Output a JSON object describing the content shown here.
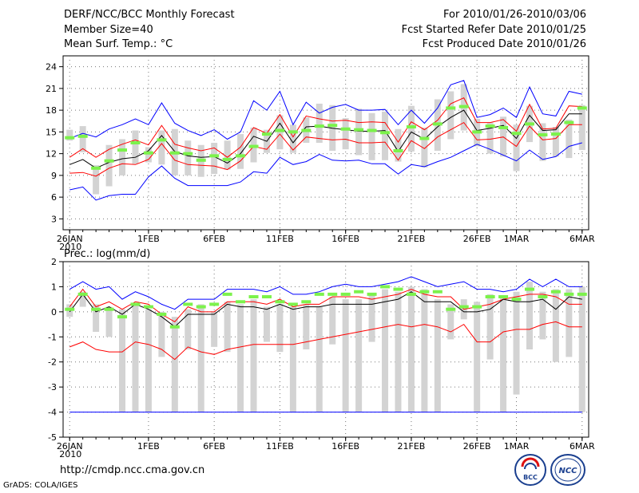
{
  "header": {
    "title": "DERF/NCC/BCC Monthly Forecast",
    "member_size": "Member Size=40",
    "variable1": "Mean Surf. Temp.: °C",
    "fcst_period": "For 2010/01/26-2010/03/06",
    "fcst_started": "Fcst Started Refer Date 2010/01/25",
    "fcst_produced": "Fcst Produced Date 2010/01/26"
  },
  "footer": {
    "url": "http://cmdp.ncc.cma.gov.cn",
    "credit": "GrADS: COLA/IGES",
    "logo_left": "BCC",
    "logo_right": "NCC"
  },
  "colors": {
    "mean": "#000000",
    "envelope": "#0000ff",
    "spread": "#ff0000",
    "bar": "#d3d3d3",
    "marker": "#7cf24b"
  },
  "chart_data": [
    {
      "type": "line",
      "title": "Mean Surf. Temp.: °C",
      "ylim": [
        1.5,
        25.5
      ],
      "yticks": [
        3,
        6,
        9,
        12,
        15,
        18,
        21,
        24
      ],
      "xticklabels": [
        {
          "day": 0,
          "label": "26JAN",
          "sub": "2010"
        },
        {
          "day": 6,
          "label": "1FEB"
        },
        {
          "day": 11,
          "label": "6FEB"
        },
        {
          "day": 16,
          "label": "11FEB"
        },
        {
          "day": 21,
          "label": "16FEB"
        },
        {
          "day": 26,
          "label": "21FEB"
        },
        {
          "day": 31,
          "label": "26FEB"
        },
        {
          "day": 34,
          "label": "1MAR"
        },
        {
          "day": 39,
          "label": "6MAR"
        }
      ],
      "series": [
        {
          "name": "max",
          "color": "#0000ff",
          "values": [
            14.1,
            14.8,
            14.3,
            15.4,
            16.0,
            16.8,
            16.0,
            19.0,
            16.2,
            15.2,
            14.5,
            15.3,
            14.0,
            15.0,
            19.3,
            18.0,
            20.6,
            16.0,
            19.1,
            17.6,
            18.4,
            18.8,
            18.0,
            18.0,
            18.1,
            16.0,
            18.0,
            16.2,
            18.3,
            21.5,
            22.1,
            17.0,
            17.4,
            18.3,
            17.0,
            21.2,
            17.5,
            17.2,
            20.6,
            20.2
          ]
        },
        {
          "name": "upper",
          "color": "#ff0000",
          "values": [
            11.5,
            12.7,
            11.5,
            12.6,
            13.3,
            13.9,
            13.2,
            15.9,
            13.3,
            12.8,
            12.4,
            12.8,
            11.5,
            12.9,
            15.6,
            14.8,
            17.4,
            14.3,
            17.2,
            16.8,
            16.5,
            16.6,
            16.3,
            16.4,
            16.3,
            13.6,
            16.4,
            15.3,
            16.6,
            18.9,
            19.7,
            16.3,
            16.3,
            16.7,
            15.1,
            18.8,
            15.4,
            15.5,
            18.6,
            18.5
          ]
        },
        {
          "name": "mean",
          "color": "#000000",
          "values": [
            10.5,
            11.2,
            10.0,
            10.8,
            11.3,
            11.5,
            12.4,
            14.5,
            12.3,
            11.7,
            11.5,
            11.6,
            10.7,
            12.0,
            14.4,
            13.7,
            16.2,
            13.5,
            15.7,
            15.8,
            15.5,
            15.3,
            15.1,
            15.1,
            15.2,
            12.3,
            15.0,
            14.0,
            15.7,
            17.0,
            18.0,
            15.2,
            15.5,
            15.9,
            14.1,
            17.3,
            15.2,
            15.3,
            17.5,
            17.5
          ]
        },
        {
          "name": "lower",
          "color": "#ff0000",
          "values": [
            9.3,
            9.4,
            8.9,
            10.0,
            10.6,
            10.5,
            11.2,
            13.4,
            11.1,
            10.5,
            10.4,
            10.3,
            9.8,
            11.0,
            13.0,
            12.6,
            14.7,
            12.5,
            14.3,
            14.1,
            13.9,
            14.0,
            13.5,
            13.5,
            13.6,
            11.1,
            13.8,
            12.7,
            14.3,
            15.3,
            16.3,
            13.9,
            14.0,
            14.3,
            13.0,
            15.8,
            13.9,
            14.1,
            16.0,
            16.0
          ]
        },
        {
          "name": "min",
          "color": "#0000ff",
          "values": [
            7.0,
            7.4,
            5.6,
            6.2,
            6.4,
            6.4,
            8.8,
            10.3,
            8.6,
            7.6,
            7.6,
            7.6,
            7.6,
            8.1,
            9.5,
            9.3,
            11.5,
            10.5,
            10.9,
            11.9,
            11.1,
            11.0,
            11.1,
            10.6,
            10.6,
            9.2,
            10.5,
            10.2,
            10.9,
            11.5,
            12.4,
            13.3,
            12.6,
            11.8,
            11.0,
            12.5,
            11.2,
            11.6,
            13.0,
            13.5
          ]
        }
      ],
      "bars": [
        [
          13.8,
          15.3
        ],
        [
          12.2,
          15.8
        ],
        [
          6.4,
          10.4
        ],
        [
          7.5,
          13.2
        ],
        [
          9.0,
          14.0
        ],
        [
          10.6,
          15.2
        ],
        [
          10.8,
          12.9
        ],
        [
          10.5,
          15.2
        ],
        [
          9.0,
          15.4
        ],
        [
          9.0,
          13.8
        ],
        [
          8.8,
          13.2
        ],
        [
          9.2,
          13.5
        ],
        [
          9.8,
          13.8
        ],
        [
          9.9,
          14.7
        ],
        [
          10.8,
          15.6
        ],
        [
          12.1,
          15.3
        ],
        [
          12.6,
          17.3
        ],
        [
          12.1,
          16.0
        ],
        [
          13.5,
          17.0
        ],
        [
          13.5,
          18.9
        ],
        [
          12.4,
          18.7
        ],
        [
          12.6,
          16.9
        ],
        [
          11.8,
          18.2
        ],
        [
          11.1,
          17.6
        ],
        [
          11.1,
          17.8
        ],
        [
          10.9,
          15.4
        ],
        [
          12.3,
          18.6
        ],
        [
          10.1,
          15.6
        ],
        [
          12.4,
          19.5
        ],
        [
          14.0,
          20.6
        ],
        [
          15.2,
          21.6
        ],
        [
          13.0,
          16.8
        ],
        [
          12.0,
          16.3
        ],
        [
          11.6,
          17.1
        ],
        [
          9.6,
          16.0
        ],
        [
          13.6,
          18.6
        ],
        [
          11.0,
          16.2
        ],
        [
          11.6,
          15.7
        ],
        [
          11.4,
          16.7
        ],
        [
          12.5,
          18.7
        ]
      ],
      "markers": [
        14.2,
        14.4,
        10.0,
        11.0,
        12.5,
        13.5,
        12.1,
        13.9,
        12.1,
        12.0,
        11.1,
        11.7,
        11.2,
        11.7,
        13.0,
        14.7,
        15.2,
        15.0,
        15.2,
        15.8,
        15.9,
        15.4,
        15.3,
        15.2,
        14.9,
        12.4,
        15.7,
        14.1,
        16.1,
        18.3,
        18.5,
        15.0,
        15.8,
        15.6,
        14.8,
        16.1,
        14.6,
        14.7,
        16.3,
        18.3
      ]
    },
    {
      "type": "line",
      "title": "Prec.: log(mm/d)",
      "ylim": [
        -5,
        2
      ],
      "yticks": [
        -5,
        -4,
        -3,
        -2,
        -1,
        0,
        1,
        2
      ],
      "xticklabels": [
        {
          "day": 0,
          "label": "26JAN",
          "sub": "2010"
        },
        {
          "day": 6,
          "label": "1FEB"
        },
        {
          "day": 11,
          "label": "6FEB"
        },
        {
          "day": 16,
          "label": "11FEB"
        },
        {
          "day": 21,
          "label": "16FEB"
        },
        {
          "day": 26,
          "label": "21FEB"
        },
        {
          "day": 31,
          "label": "26FEB"
        },
        {
          "day": 34,
          "label": "1MAR"
        },
        {
          "day": 39,
          "label": "6MAR"
        }
      ],
      "series": [
        {
          "name": "max",
          "color": "#0000ff",
          "values": [
            0.9,
            1.2,
            0.9,
            1.0,
            0.5,
            0.8,
            0.6,
            0.3,
            0.1,
            0.5,
            0.5,
            0.5,
            0.9,
            0.9,
            0.9,
            0.8,
            1.0,
            0.7,
            0.7,
            0.8,
            1.0,
            1.1,
            1.0,
            1.0,
            1.1,
            1.2,
            1.4,
            1.2,
            1.0,
            1.1,
            1.2,
            0.9,
            0.9,
            0.8,
            0.9,
            1.3,
            1.0,
            1.3,
            1.0,
            1.0
          ]
        },
        {
          "name": "upper",
          "color": "#ff0000",
          "values": [
            0.2,
            0.9,
            0.2,
            0.4,
            0.1,
            0.4,
            0.3,
            -0.1,
            -0.4,
            0.2,
            0.0,
            0.0,
            0.4,
            0.4,
            0.4,
            0.3,
            0.5,
            0.2,
            0.3,
            0.3,
            0.6,
            0.6,
            0.6,
            0.5,
            0.6,
            0.7,
            0.9,
            0.7,
            0.6,
            0.6,
            0.1,
            0.2,
            0.3,
            0.5,
            0.6,
            0.7,
            0.7,
            0.6,
            0.3,
            0.3
          ]
        },
        {
          "name": "mean",
          "color": "#000000",
          "values": [
            0.0,
            0.7,
            0.0,
            0.2,
            -0.1,
            0.3,
            0.1,
            -0.2,
            -0.6,
            -0.1,
            -0.1,
            -0.1,
            0.3,
            0.2,
            0.2,
            0.1,
            0.3,
            0.1,
            0.2,
            0.2,
            0.3,
            0.3,
            0.3,
            0.3,
            0.4,
            0.5,
            0.8,
            0.4,
            0.4,
            0.4,
            0.0,
            0.0,
            0.1,
            0.5,
            0.4,
            0.4,
            0.5,
            0.1,
            0.6,
            0.5
          ]
        },
        {
          "name": "lower",
          "color": "#ff0000",
          "values": [
            -1.4,
            -1.2,
            -1.5,
            -1.6,
            -1.6,
            -1.2,
            -1.3,
            -1.5,
            -1.9,
            -1.4,
            -1.6,
            -1.7,
            -1.5,
            -1.4,
            -1.3,
            -1.3,
            -1.3,
            -1.3,
            -1.2,
            -1.1,
            -1.0,
            -0.9,
            -0.8,
            -0.7,
            -0.6,
            -0.5,
            -0.6,
            -0.5,
            -0.6,
            -0.8,
            -0.5,
            -1.2,
            -1.2,
            -0.8,
            -0.7,
            -0.7,
            -0.5,
            -0.4,
            -0.6,
            -0.6
          ]
        },
        {
          "name": "min",
          "color": "#0000ff",
          "values": [
            -4.0,
            -4.0,
            -4.0,
            -4.0,
            -4.0,
            -4.0,
            -4.0,
            -4.0,
            -4.0,
            -4.0,
            -4.0,
            -4.0,
            -4.0,
            -4.0,
            -4.0,
            -4.0,
            -4.0,
            -4.0,
            -4.0,
            -4.0,
            -4.0,
            -4.0,
            -4.0,
            -4.0,
            -4.0,
            -4.0,
            -4.0,
            -4.0,
            -4.0,
            -4.0,
            -4.0,
            -4.0,
            -4.0,
            -4.0,
            -4.0,
            -4.0,
            -4.0,
            -4.0,
            -4.0,
            -4.0
          ]
        }
      ],
      "bars": [
        [
          -0.2,
          0.3
        ],
        [
          0.2,
          0.8
        ],
        [
          -0.8,
          0.3
        ],
        [
          -1.0,
          0.2
        ],
        [
          -4.0,
          0.1
        ],
        [
          -4.0,
          0.3
        ],
        [
          -4.0,
          0.1
        ],
        [
          -1.8,
          0.0
        ],
        [
          -4.0,
          -0.2
        ],
        [
          -1.5,
          0.1
        ],
        [
          -4.0,
          0.3
        ],
        [
          -1.4,
          0.0
        ],
        [
          -1.6,
          0.4
        ],
        [
          -4.0,
          0.3
        ],
        [
          -4.0,
          0.5
        ],
        [
          -1.2,
          0.2
        ],
        [
          -1.6,
          0.3
        ],
        [
          -4.0,
          0.2
        ],
        [
          -1.5,
          0.3
        ],
        [
          -4.0,
          0.2
        ],
        [
          -1.3,
          0.6
        ],
        [
          -4.0,
          0.5
        ],
        [
          -4.0,
          0.5
        ],
        [
          -1.2,
          0.7
        ],
        [
          -4.0,
          0.9
        ],
        [
          -4.0,
          0.8
        ],
        [
          -4.0,
          1.0
        ],
        [
          -4.0,
          0.9
        ],
        [
          -4.0,
          0.5
        ],
        [
          -1.1,
          0.3
        ],
        [
          -0.3,
          0.5
        ],
        [
          -4.0,
          0.4
        ],
        [
          -1.9,
          0.7
        ],
        [
          -4.0,
          0.6
        ],
        [
          -3.3,
          0.8
        ],
        [
          -1.5,
          1.2
        ],
        [
          -1.1,
          0.8
        ],
        [
          -2.0,
          0.9
        ],
        [
          -1.8,
          0.9
        ],
        [
          -4.0,
          1.0
        ]
      ],
      "markers": [
        0.1,
        0.7,
        0.1,
        0.1,
        -0.2,
        0.3,
        0.2,
        -0.1,
        -0.6,
        0.3,
        0.2,
        0.3,
        0.7,
        0.4,
        0.6,
        0.6,
        0.4,
        0.3,
        0.4,
        0.7,
        0.7,
        0.7,
        0.8,
        0.7,
        1.0,
        0.9,
        0.7,
        0.8,
        0.8,
        0.1,
        0.2,
        0.2,
        0.6,
        0.6,
        0.5,
        0.9,
        0.6,
        0.8,
        0.7,
        0.7
      ]
    }
  ]
}
